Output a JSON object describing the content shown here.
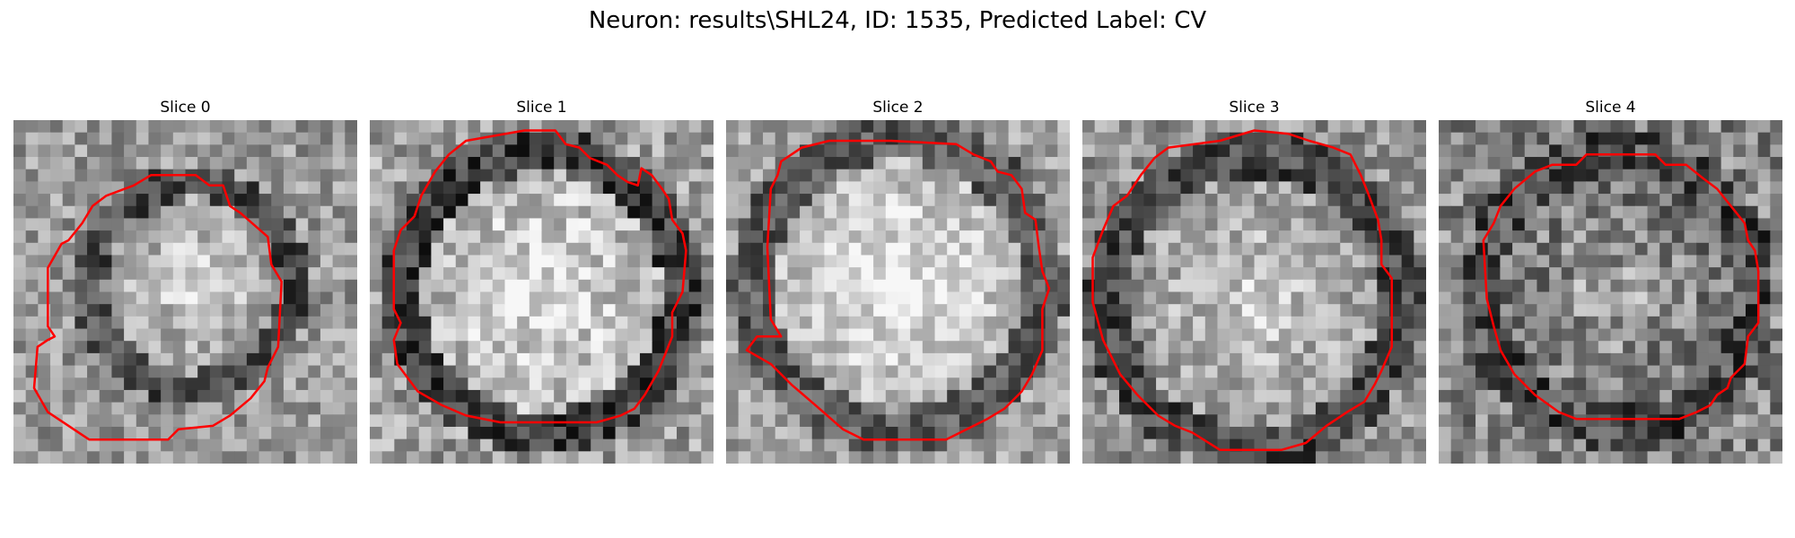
{
  "figure": {
    "title": "Neuron: results\\SHL24, ID: 1535, Predicted Label: CV"
  },
  "panels": [
    {
      "title": "Slice 0",
      "seed": 11,
      "center": [
        0.52,
        0.48
      ],
      "radius": 0.31,
      "inner": 0.62,
      "ring": 0.3,
      "bg": 0.6,
      "noise": 0.2
    },
    {
      "title": "Slice 1",
      "seed": 23,
      "center": [
        0.5,
        0.5
      ],
      "radius": 0.42,
      "inner": 0.7,
      "ring": 0.25,
      "bg": 0.62,
      "noise": 0.22
    },
    {
      "title": "Slice 2",
      "seed": 37,
      "center": [
        0.5,
        0.48
      ],
      "radius": 0.44,
      "inner": 0.72,
      "ring": 0.35,
      "bg": 0.64,
      "noise": 0.18
    },
    {
      "title": "Slice 3",
      "seed": 41,
      "center": [
        0.5,
        0.53
      ],
      "radius": 0.44,
      "inner": 0.6,
      "ring": 0.28,
      "bg": 0.58,
      "noise": 0.2
    },
    {
      "title": "Slice 4",
      "seed": 53,
      "center": [
        0.52,
        0.5
      ],
      "radius": 0.41,
      "inner": 0.45,
      "ring": 0.3,
      "bg": 0.52,
      "noise": 0.25
    }
  ],
  "contour_color": "#ff0000"
}
